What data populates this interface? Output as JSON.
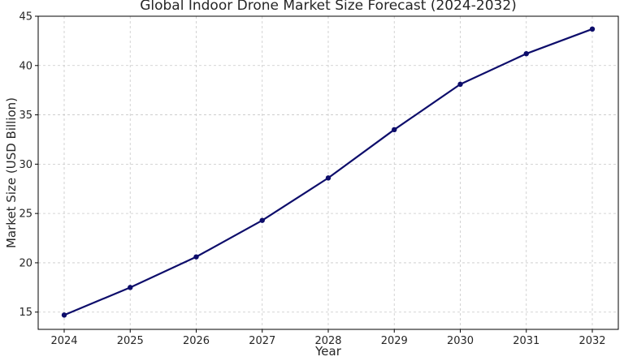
{
  "chart_data": {
    "type": "line",
    "title": "Global Indoor Drone Market Size Forecast (2024-2032)",
    "xlabel": "Year",
    "ylabel": "Market Size (USD Billion)",
    "x": [
      "2024",
      "2025",
      "2026",
      "2027",
      "2028",
      "2029",
      "2030",
      "2031",
      "2032"
    ],
    "series": [
      {
        "values": [
          14.7,
          17.5,
          20.6,
          24.3,
          28.6,
          33.5,
          38.1,
          41.2,
          43.7
        ],
        "color": "#0d0d6b"
      }
    ],
    "ylim": [
      13.25,
      45
    ],
    "yticks": [
      15,
      20,
      25,
      30,
      35,
      40,
      45
    ],
    "grid": true,
    "legend": "none"
  }
}
